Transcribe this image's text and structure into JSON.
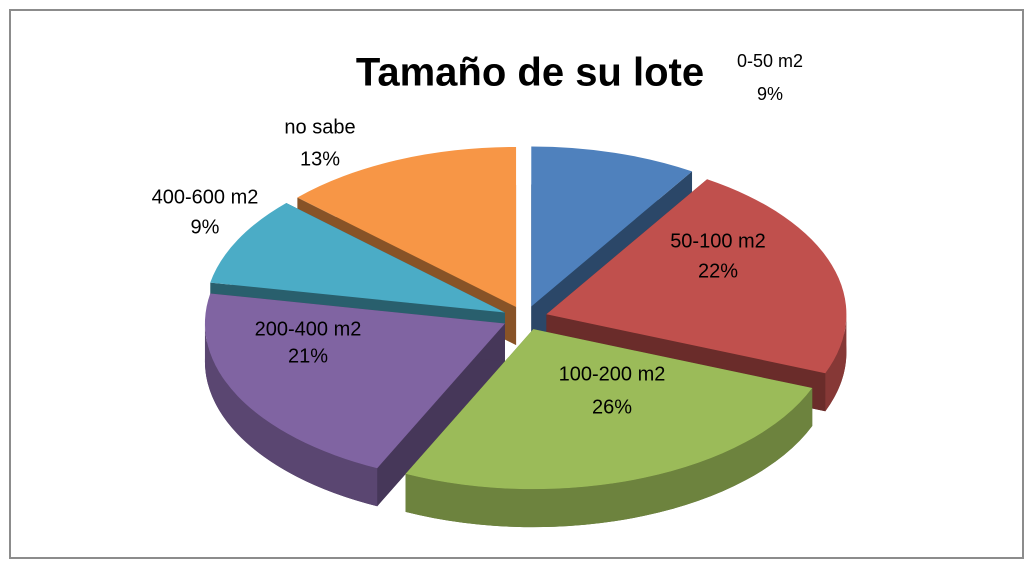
{
  "chart_data": {
    "type": "pie",
    "title": "Tamaño de su lote",
    "categories": [
      "0-50 m2",
      "50-100 m2",
      "100-200 m2",
      "200-400 m2",
      "400-600 m2",
      "no sabe"
    ],
    "values": [
      9,
      22,
      26,
      21,
      9,
      13
    ],
    "value_labels": [
      "9%",
      "22%",
      "26%",
      "21%",
      "9%",
      "13%"
    ],
    "colors": [
      "#4f81bd",
      "#c0504d",
      "#9bbb59",
      "#8064a2",
      "#4bacc6",
      "#f79646"
    ]
  }
}
